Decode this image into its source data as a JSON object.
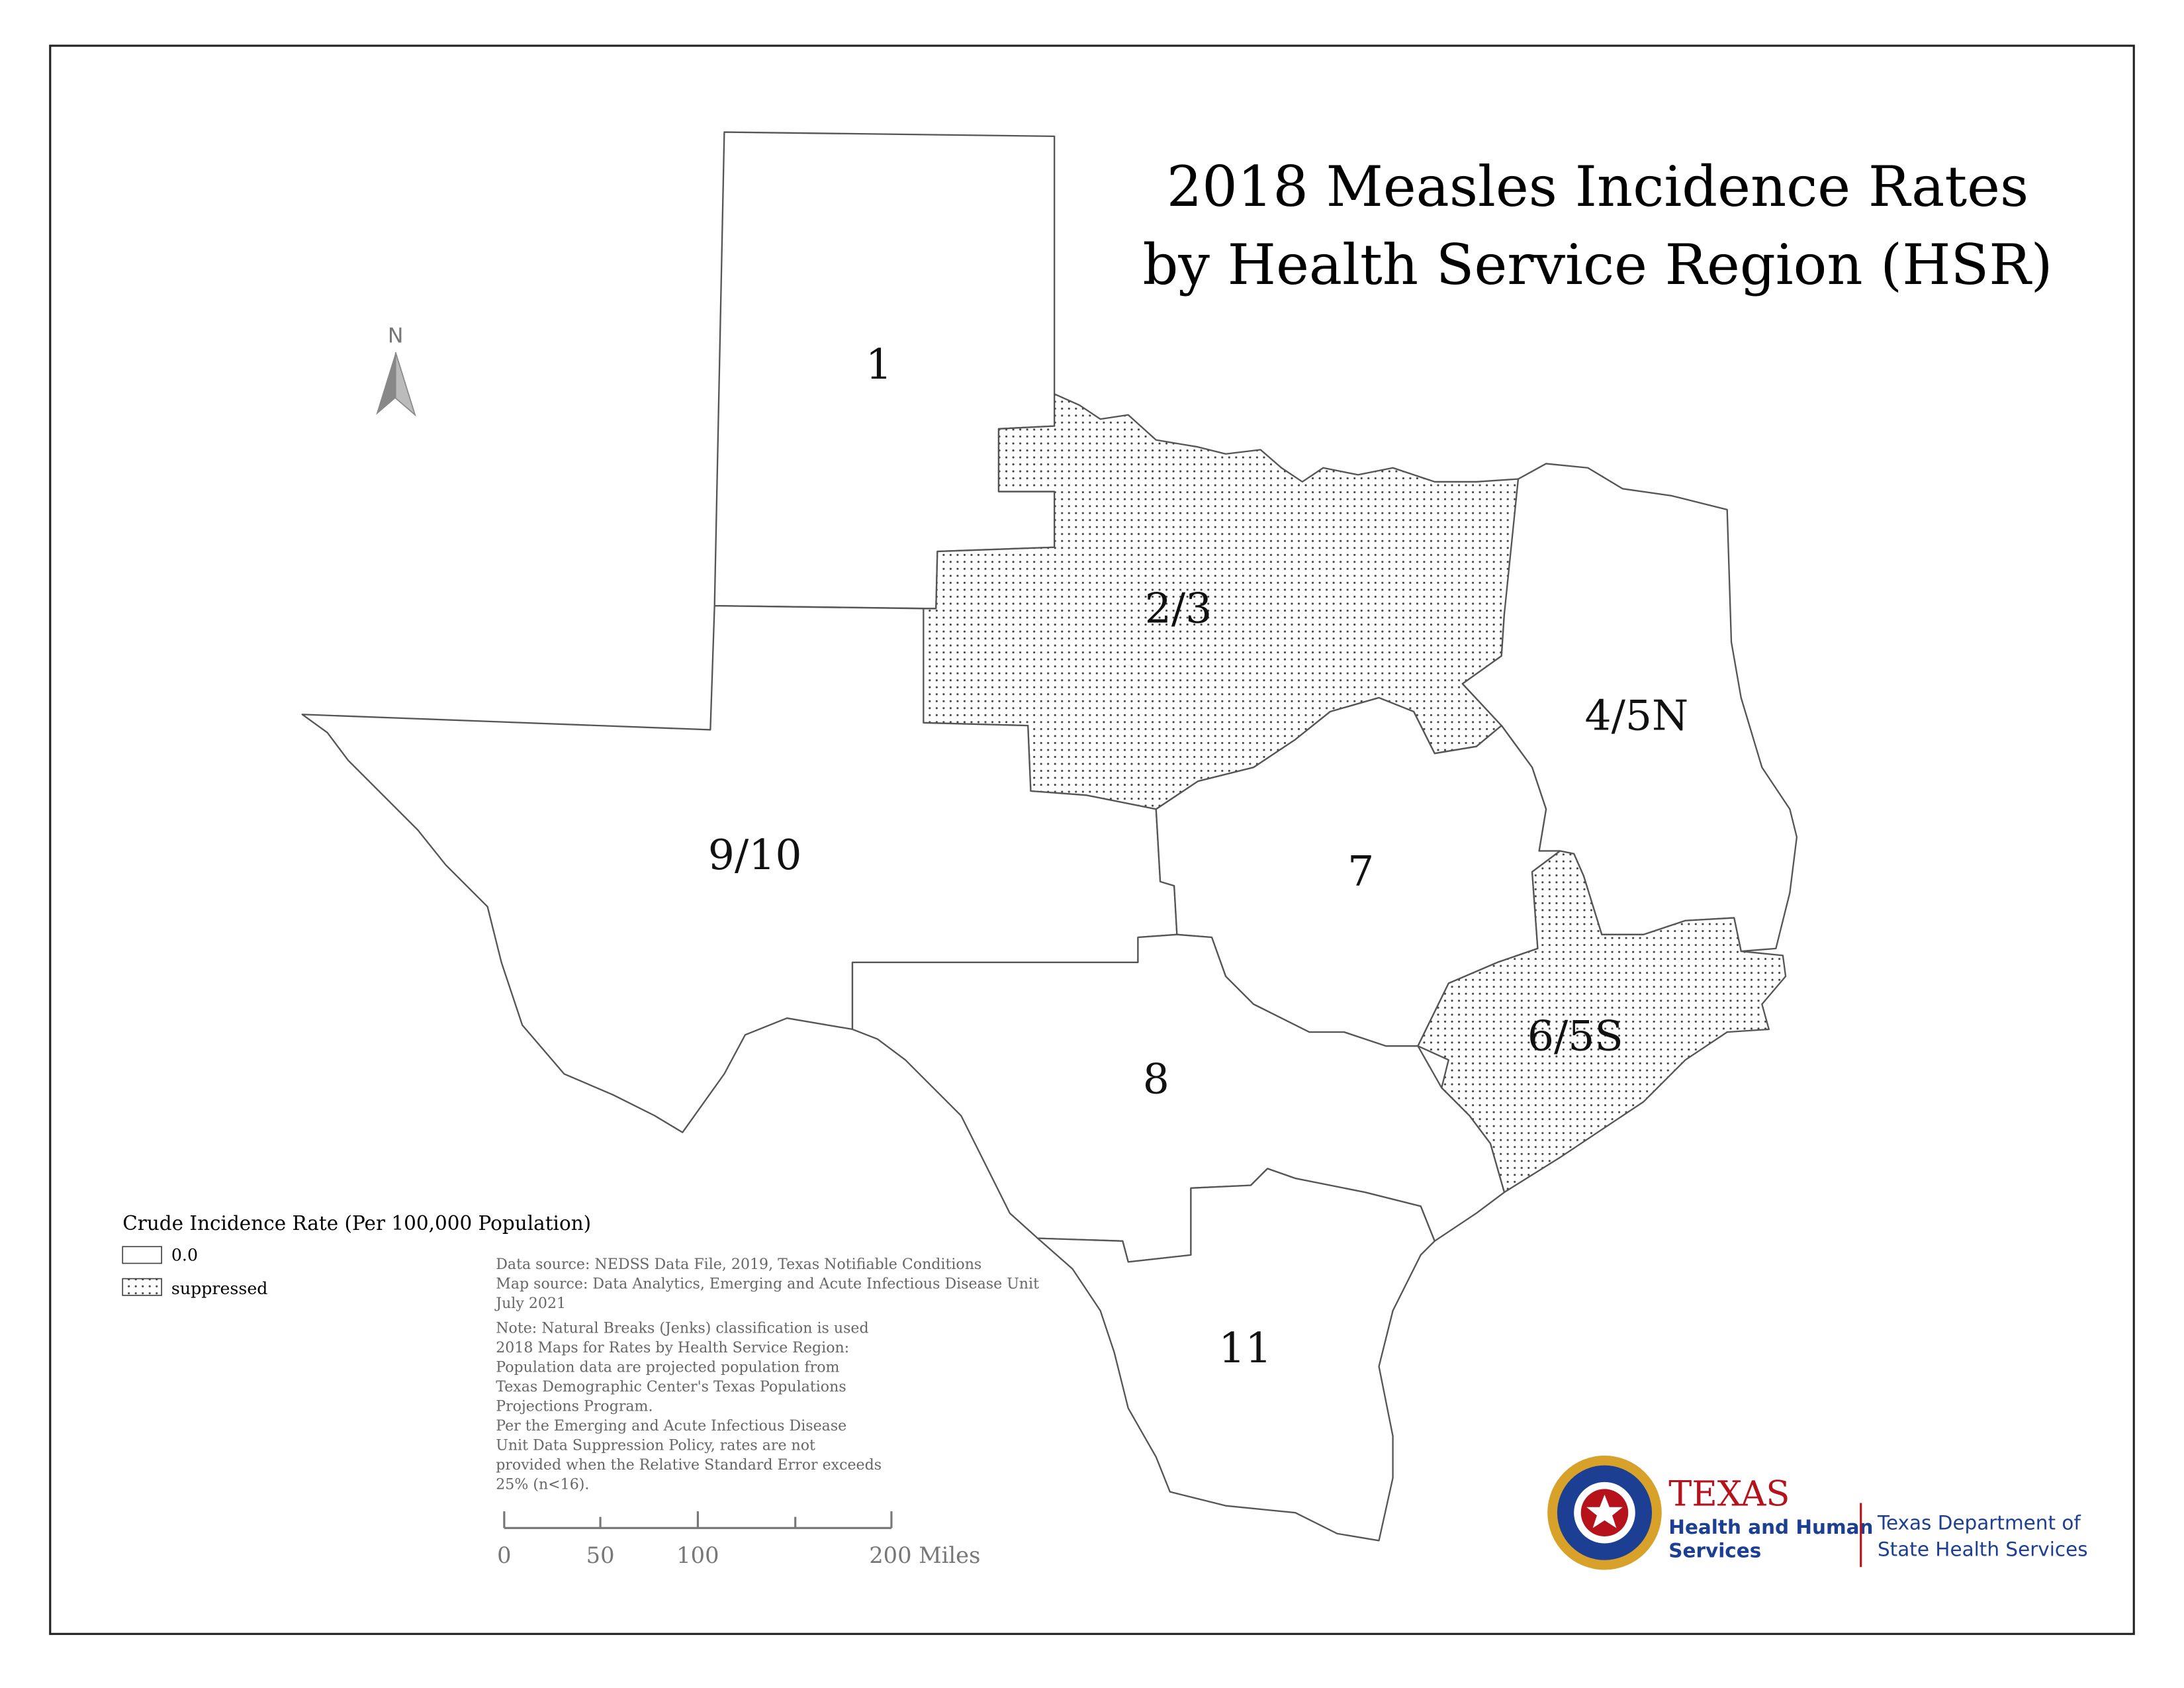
{
  "title": [
    "2018 Measles Incidence Rates",
    "by Health Service Region (HSR)"
  ],
  "north": "N",
  "regions": [
    {
      "label": "1",
      "rate": "0.0"
    },
    {
      "label": "2/3",
      "rate": "suppressed"
    },
    {
      "label": "9/10",
      "rate": "0.0"
    },
    {
      "label": "4/5N",
      "rate": "0.0"
    },
    {
      "label": "7",
      "rate": "0.0"
    },
    {
      "label": "6/5S",
      "rate": "suppressed"
    },
    {
      "label": "8",
      "rate": "0.0"
    },
    {
      "label": "11",
      "rate": "0.0"
    }
  ],
  "legend": {
    "title": "Crude Incidence Rate (Per 100,000 Population)",
    "items": [
      {
        "label": "0.0"
      },
      {
        "label": "suppressed"
      }
    ]
  },
  "notes": [
    "Data source: NEDSS Data File, 2019, Texas Notifiable Conditions",
    "Map source: Data Analytics, Emerging and Acute Infectious Disease Unit",
    "July 2021",
    "Note:  Natural Breaks (Jenks) classification is used",
    "2018 Maps for Rates by Health Service Region:",
    "Population data are projected population from",
    "Texas Demographic Center's Texas Populations",
    "Projections Program.",
    "Per the Emerging and Acute Infectious Disease",
    "Unit Data Suppression Policy, rates are not",
    "provided when the Relative Standard Error exceeds",
    "25% (n<16)."
  ],
  "scale_bar": [
    "0",
    "50",
    "100",
    "200 Miles"
  ],
  "logo": {
    "hhs": [
      "TEXAS",
      "Health and Human",
      "Services"
    ],
    "dshs": [
      "Texas Department of",
      "State Health Services"
    ]
  }
}
